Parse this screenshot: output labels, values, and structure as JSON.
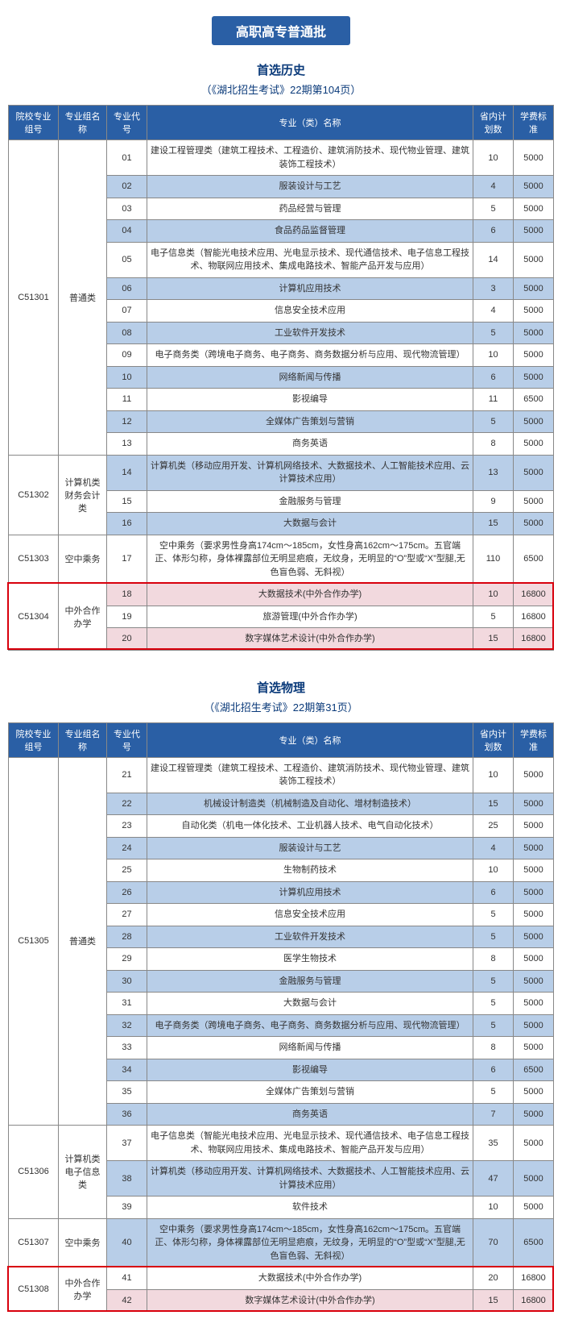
{
  "banner": "高职高专普通批",
  "sections": [
    {
      "title": "首选历史",
      "subtitle": "（《湖北招生考试》22期第104页）",
      "headers": [
        "院校专业组号",
        "专业组名称",
        "专业代号",
        "专业（类）名称",
        "省内计划数",
        "学费标准"
      ],
      "highlight": {
        "group_id": "C51304"
      },
      "groups": [
        {
          "id": "C51301",
          "name": "普通类",
          "rows": [
            {
              "code": "01",
              "major": "建设工程管理类（建筑工程技术、工程造价、建筑消防技术、现代物业管理、建筑装饰工程技术）",
              "plan": "10",
              "fee": "5000",
              "alt": false
            },
            {
              "code": "02",
              "major": "服装设计与工艺",
              "plan": "4",
              "fee": "5000",
              "alt": true
            },
            {
              "code": "03",
              "major": "药品经营与管理",
              "plan": "5",
              "fee": "5000",
              "alt": false
            },
            {
              "code": "04",
              "major": "食品药品监督管理",
              "plan": "6",
              "fee": "5000",
              "alt": true
            },
            {
              "code": "05",
              "major": "电子信息类（智能光电技术应用、光电显示技术、现代通信技术、电子信息工程技术、物联网应用技术、集成电路技术、智能产品开发与应用）",
              "plan": "14",
              "fee": "5000",
              "alt": false
            },
            {
              "code": "06",
              "major": "计算机应用技术",
              "plan": "3",
              "fee": "5000",
              "alt": true
            },
            {
              "code": "07",
              "major": "信息安全技术应用",
              "plan": "4",
              "fee": "5000",
              "alt": false
            },
            {
              "code": "08",
              "major": "工业软件开发技术",
              "plan": "5",
              "fee": "5000",
              "alt": true
            },
            {
              "code": "09",
              "major": "电子商务类（跨境电子商务、电子商务、商务数据分析与应用、现代物流管理）",
              "plan": "10",
              "fee": "5000",
              "alt": false
            },
            {
              "code": "10",
              "major": "网络新闻与传播",
              "plan": "6",
              "fee": "5000",
              "alt": true
            },
            {
              "code": "11",
              "major": "影视编导",
              "plan": "11",
              "fee": "6500",
              "alt": false
            },
            {
              "code": "12",
              "major": "全媒体广告策划与营销",
              "plan": "5",
              "fee": "5000",
              "alt": true
            },
            {
              "code": "13",
              "major": "商务英语",
              "plan": "8",
              "fee": "5000",
              "alt": false
            }
          ]
        },
        {
          "id": "C51302",
          "name": "计算机类\n财务会计类",
          "rows": [
            {
              "code": "14",
              "major": "计算机类（移动应用开发、计算机网络技术、大数据技术、人工智能技术应用、云计算技术应用）",
              "plan": "13",
              "fee": "5000",
              "alt": true
            },
            {
              "code": "15",
              "major": "金融服务与管理",
              "plan": "9",
              "fee": "5000",
              "alt": false
            },
            {
              "code": "16",
              "major": "大数据与会计",
              "plan": "15",
              "fee": "5000",
              "alt": true
            }
          ]
        },
        {
          "id": "C51303",
          "name": "空中乘务",
          "rows": [
            {
              "code": "17",
              "major": "空中乘务（要求男性身高174cm～185cm，女性身高162cm～175cm。五官端正、体形匀称，身体裸露部位无明显疤痕，无纹身，无明显的“O”型或“X”型腿,无色盲色弱、无斜视）",
              "plan": "110",
              "fee": "6500",
              "alt": false
            }
          ]
        },
        {
          "id": "C51304",
          "name": "中外合作办学",
          "rows": [
            {
              "code": "18",
              "major": "大数据技术(中外合作办学)",
              "plan": "10",
              "fee": "16800",
              "alt": true,
              "pink": true
            },
            {
              "code": "19",
              "major": "旅游管理(中外合作办学)",
              "plan": "5",
              "fee": "16800",
              "alt": false
            },
            {
              "code": "20",
              "major": "数字媒体艺术设计(中外合作办学)",
              "plan": "15",
              "fee": "16800",
              "alt": true,
              "pink": true
            }
          ]
        }
      ]
    },
    {
      "title": "首选物理",
      "subtitle": "（《湖北招生考试》22期第31页）",
      "headers": [
        "院校专业组号",
        "专业组名称",
        "专业代号",
        "专业（类）名称",
        "省内计划数",
        "学费标准"
      ],
      "highlight": {
        "group_id": "C51308"
      },
      "groups": [
        {
          "id": "C51305",
          "name": "普通类",
          "rows": [
            {
              "code": "21",
              "major": "建设工程管理类（建筑工程技术、工程造价、建筑消防技术、现代物业管理、建筑装饰工程技术）",
              "plan": "10",
              "fee": "5000",
              "alt": false
            },
            {
              "code": "22",
              "major": "机械设计制造类（机械制造及自动化、增材制造技术）",
              "plan": "15",
              "fee": "5000",
              "alt": true
            },
            {
              "code": "23",
              "major": "自动化类（机电一体化技术、工业机器人技术、电气自动化技术）",
              "plan": "25",
              "fee": "5000",
              "alt": false
            },
            {
              "code": "24",
              "major": "服装设计与工艺",
              "plan": "4",
              "fee": "5000",
              "alt": true
            },
            {
              "code": "25",
              "major": "生物制药技术",
              "plan": "10",
              "fee": "5000",
              "alt": false
            },
            {
              "code": "26",
              "major": "计算机应用技术",
              "plan": "6",
              "fee": "5000",
              "alt": true
            },
            {
              "code": "27",
              "major": "信息安全技术应用",
              "plan": "5",
              "fee": "5000",
              "alt": false
            },
            {
              "code": "28",
              "major": "工业软件开发技术",
              "plan": "5",
              "fee": "5000",
              "alt": true
            },
            {
              "code": "29",
              "major": "医学生物技术",
              "plan": "8",
              "fee": "5000",
              "alt": false
            },
            {
              "code": "30",
              "major": "金融服务与管理",
              "plan": "5",
              "fee": "5000",
              "alt": true
            },
            {
              "code": "31",
              "major": "大数据与会计",
              "plan": "5",
              "fee": "5000",
              "alt": false
            },
            {
              "code": "32",
              "major": "电子商务类（跨境电子商务、电子商务、商务数据分析与应用、现代物流管理）",
              "plan": "5",
              "fee": "5000",
              "alt": true
            },
            {
              "code": "33",
              "major": "网络新闻与传播",
              "plan": "8",
              "fee": "5000",
              "alt": false
            },
            {
              "code": "34",
              "major": "影视编导",
              "plan": "6",
              "fee": "6500",
              "alt": true
            },
            {
              "code": "35",
              "major": "全媒体广告策划与营销",
              "plan": "5",
              "fee": "5000",
              "alt": false
            },
            {
              "code": "36",
              "major": "商务英语",
              "plan": "7",
              "fee": "5000",
              "alt": true
            }
          ]
        },
        {
          "id": "C51306",
          "name": "计算机类\n电子信息类",
          "rows": [
            {
              "code": "37",
              "major": "电子信息类（智能光电技术应用、光电显示技术、现代通信技术、电子信息工程技术、物联网应用技术、集成电路技术、智能产品开发与应用）",
              "plan": "35",
              "fee": "5000",
              "alt": false
            },
            {
              "code": "38",
              "major": "计算机类（移动应用开发、计算机网络技术、大数据技术、人工智能技术应用、云计算技术应用）",
              "plan": "47",
              "fee": "5000",
              "alt": true
            },
            {
              "code": "39",
              "major": "软件技术",
              "plan": "10",
              "fee": "5000",
              "alt": false
            }
          ]
        },
        {
          "id": "C51307",
          "name": "空中乘务",
          "rows": [
            {
              "code": "40",
              "major": "空中乘务（要求男性身高174cm～185cm，女性身高162cm～175cm。五官端正、体形匀称，身体裸露部位无明显疤痕，无纹身，无明显的“O”型或“X”型腿,无色盲色弱、无斜视）",
              "plan": "70",
              "fee": "6500",
              "alt": true
            }
          ]
        },
        {
          "id": "C51308",
          "name": "中外合作办学",
          "rows": [
            {
              "code": "41",
              "major": "大数据技术(中外合作办学)",
              "plan": "20",
              "fee": "16800",
              "alt": false
            },
            {
              "code": "42",
              "major": "数字媒体艺术设计(中外合作办学)",
              "plan": "15",
              "fee": "16800",
              "alt": true,
              "pink": true
            }
          ]
        }
      ]
    }
  ],
  "colors": {
    "header_bg": "#2a5fa5",
    "alt_row_bg": "#b8cee8",
    "pink_row_bg": "#f2d9de",
    "highlight_border": "#d8000c",
    "title_color": "#0a3a7a"
  }
}
